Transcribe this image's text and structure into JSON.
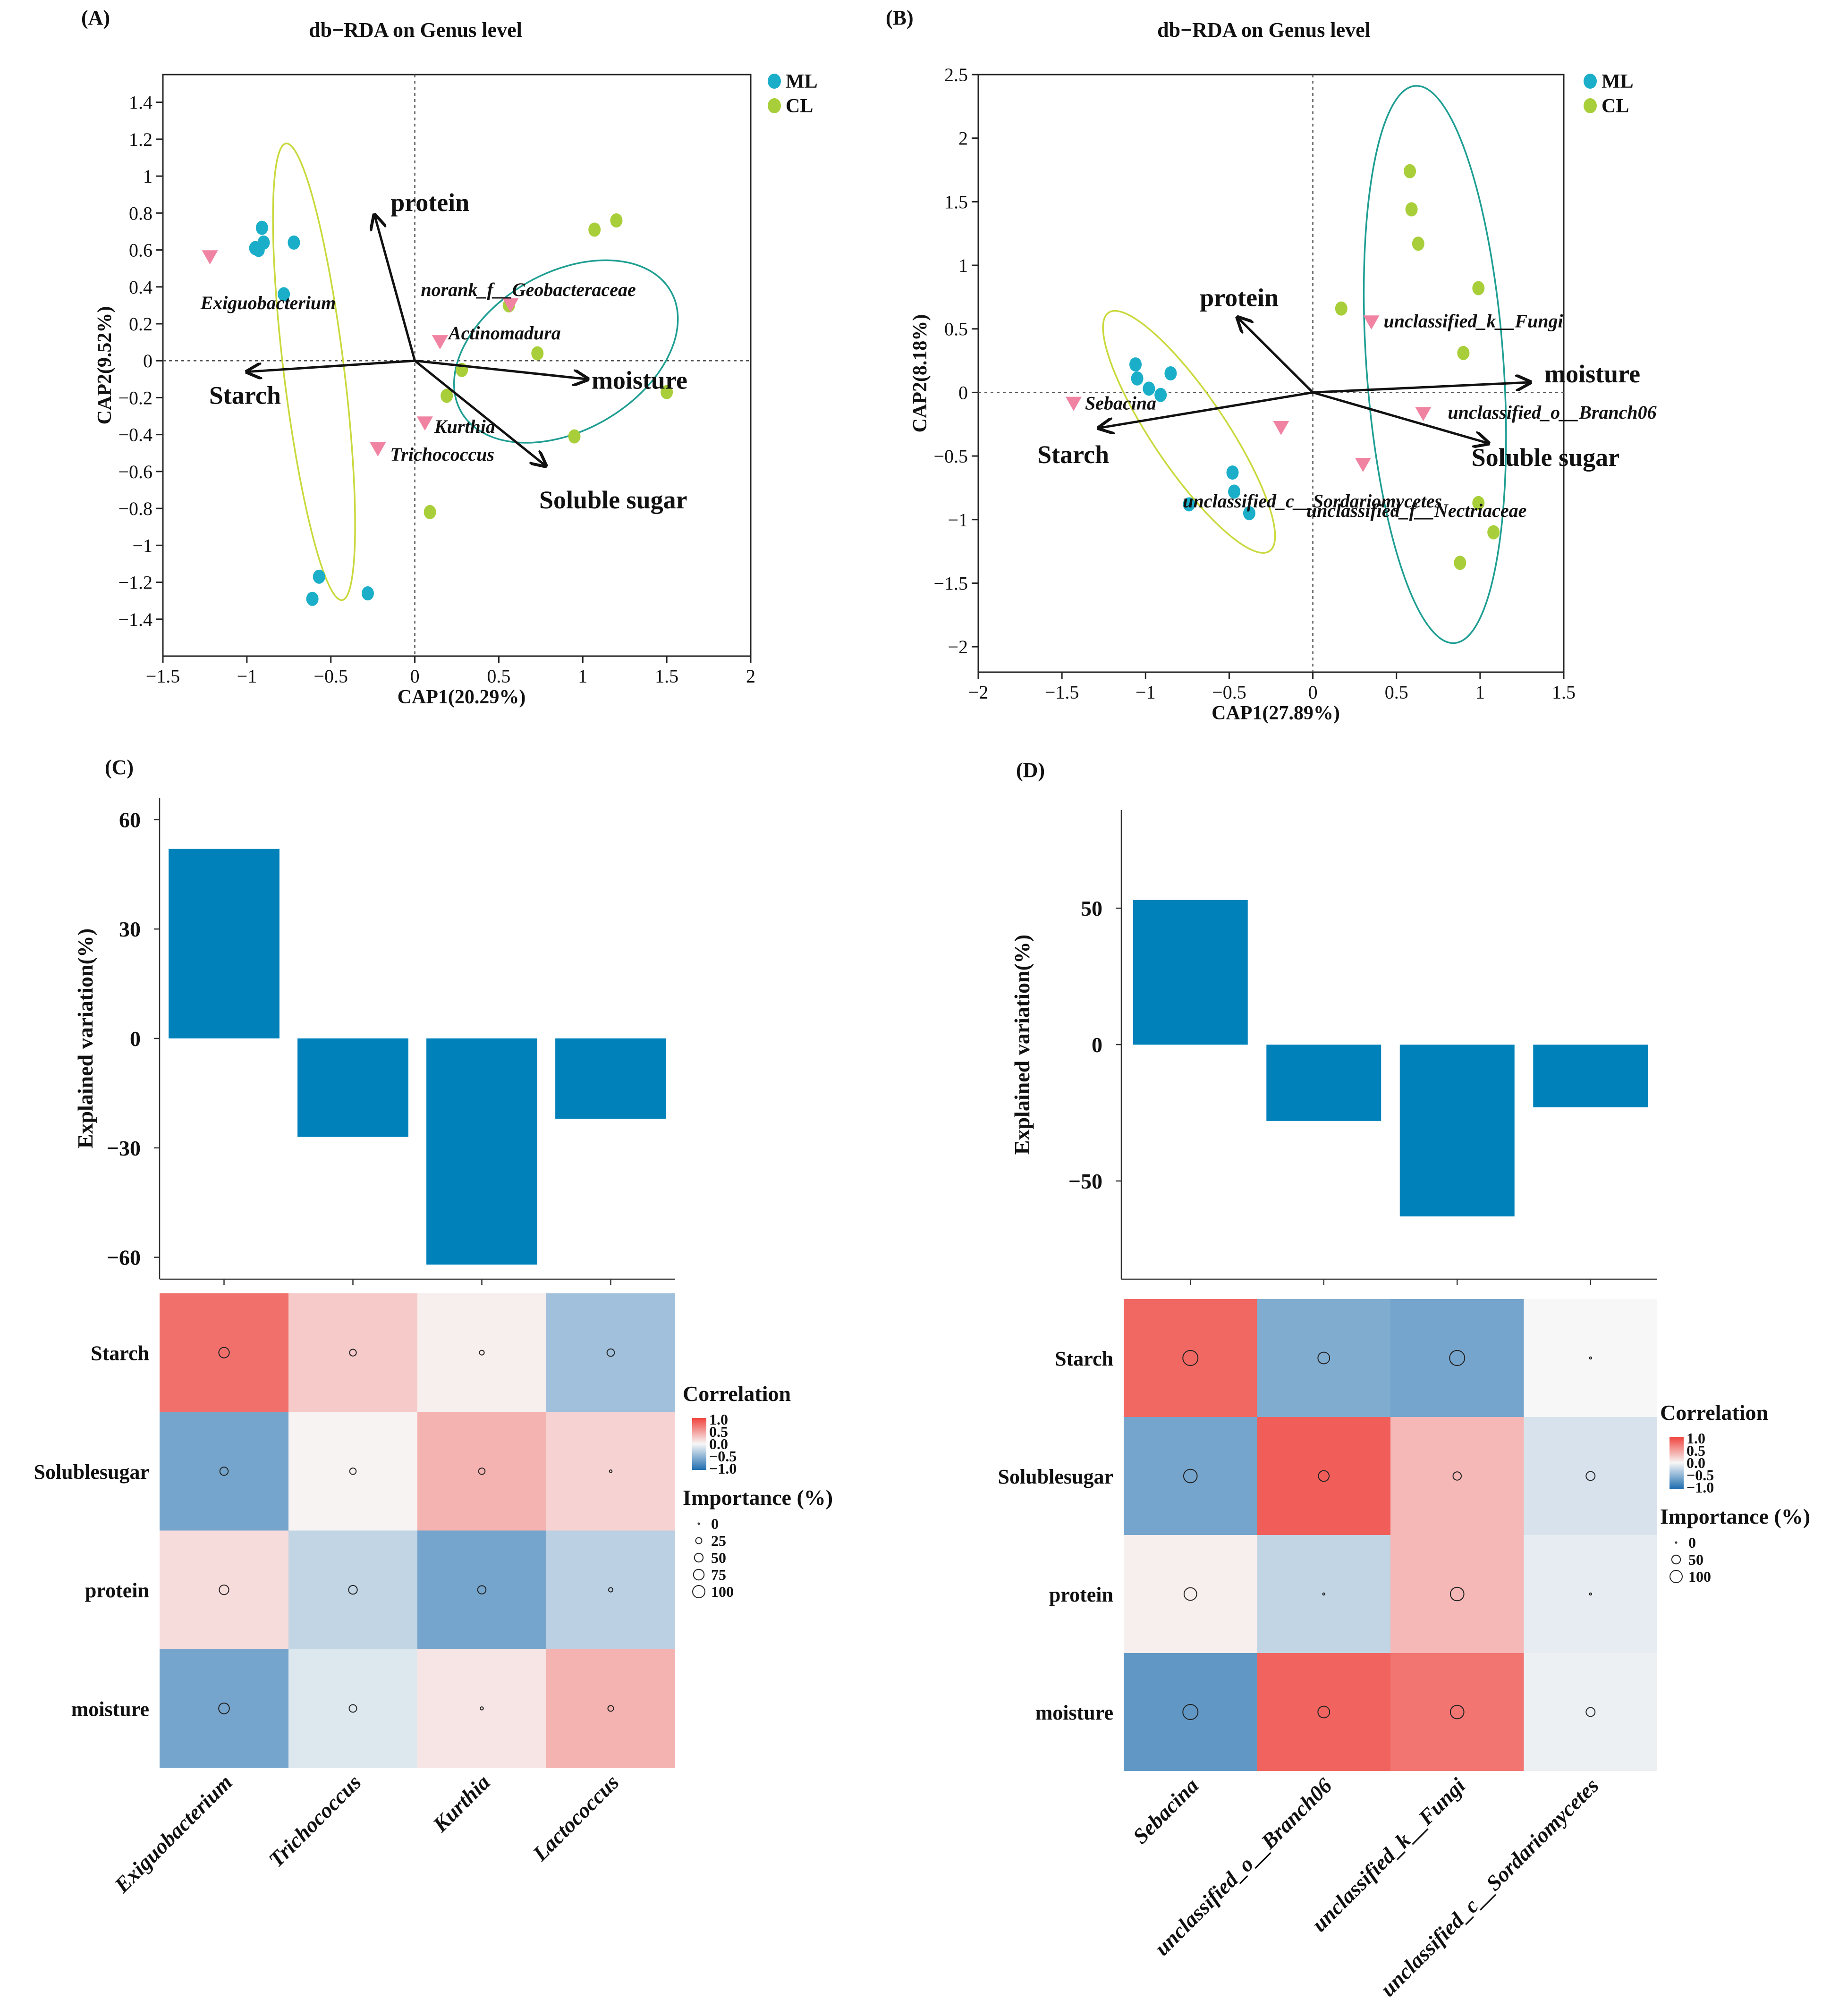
{
  "chart_data": [
    {
      "panel": "(A)",
      "type": "scatter",
      "title": "db−RDA on Genus level",
      "xlabel": "CAP1(20.29%)",
      "ylabel": "CAP2(9.52%)",
      "xlim": [
        -1.5,
        2
      ],
      "ylim": [
        -1.6,
        1.55
      ],
      "xticks": [
        -1.5,
        -1,
        -0.5,
        0,
        0.5,
        1,
        1.5,
        2
      ],
      "yticks": [
        -1.4,
        -1.2,
        -1,
        -0.8,
        -0.6,
        -0.4,
        -0.2,
        0,
        0.2,
        0.4,
        0.6,
        0.8,
        1,
        1.2,
        1.4
      ],
      "legend": [
        {
          "name": "ML",
          "color": "#1AAEC9"
        },
        {
          "name": "CL",
          "color": "#A8CE3A"
        }
      ],
      "series": [
        {
          "name": "ML",
          "points": [
            [
              -0.91,
              0.72
            ],
            [
              -0.9,
              0.64
            ],
            [
              -0.93,
              0.6
            ],
            [
              -0.95,
              0.61
            ],
            [
              -0.72,
              0.64
            ],
            [
              -0.78,
              0.36
            ],
            [
              -0.57,
              -1.17
            ],
            [
              -0.61,
              -1.29
            ],
            [
              -0.28,
              -1.26
            ]
          ]
        },
        {
          "name": "CL",
          "points": [
            [
              1.2,
              0.76
            ],
            [
              1.07,
              0.71
            ],
            [
              0.56,
              0.3
            ],
            [
              0.73,
              0.04
            ],
            [
              0.28,
              -0.05
            ],
            [
              0.19,
              -0.19
            ],
            [
              1.5,
              -0.17
            ],
            [
              0.95,
              -0.41
            ],
            [
              0.09,
              -0.82
            ]
          ]
        }
      ],
      "ellipses": [
        {
          "group": "ML",
          "color": "#C9D93D",
          "cx": -0.6,
          "cy": -0.06,
          "rx": 1.37,
          "ry": 0.18,
          "angle_deg": -83
        },
        {
          "group": "CL",
          "color": "#1F9E93",
          "cx": 0.9,
          "cy": 0.05,
          "rx": 0.72,
          "ry": 0.47,
          "angle_deg": 30
        }
      ],
      "species": [
        {
          "name": "Exiguobacterium",
          "x": -1.22,
          "y": 0.56
        },
        {
          "name": "norank_f__Geobacteraceae",
          "x": 0.57,
          "y": 0.3
        },
        {
          "name": "Actinomadura",
          "x": 0.15,
          "y": 0.1
        },
        {
          "name": "Kurthia",
          "x": 0.06,
          "y": -0.34
        },
        {
          "name": "Trichococcus",
          "x": -0.22,
          "y": -0.48
        }
      ],
      "species_color": "#F083A2",
      "arrows": [
        {
          "name": "protein",
          "x": -0.24,
          "y": 0.79
        },
        {
          "name": "Starch",
          "x": -1.0,
          "y": -0.06
        },
        {
          "name": "moisture",
          "x": 1.03,
          "y": -0.1
        },
        {
          "name": "Soluble sugar",
          "x": 0.78,
          "y": -0.57
        }
      ]
    },
    {
      "panel": "(B)",
      "type": "scatter",
      "title": "db−RDA on Genus level",
      "xlabel": "CAP1(27.89%)",
      "ylabel": "CAP2(8.18%)",
      "xlim": [
        -2,
        1.5
      ],
      "ylim": [
        -2.2,
        2.5
      ],
      "xticks": [
        -2,
        -1.5,
        -1,
        -0.5,
        0,
        0.5,
        1,
        1.5
      ],
      "yticks": [
        -2,
        -1.5,
        -1,
        -0.5,
        0,
        0.5,
        1,
        1.5,
        2,
        2.5
      ],
      "legend": [
        {
          "name": "ML",
          "color": "#1AAEC9"
        },
        {
          "name": "CL",
          "color": "#A8CE3A"
        }
      ],
      "series": [
        {
          "name": "ML",
          "points": [
            [
              -1.06,
              0.22
            ],
            [
              -1.05,
              0.11
            ],
            [
              -0.98,
              0.03
            ],
            [
              -0.91,
              -0.02
            ],
            [
              -0.85,
              0.15
            ],
            [
              -0.74,
              -0.88
            ],
            [
              -0.48,
              -0.63
            ],
            [
              -0.47,
              -0.78
            ],
            [
              -0.38,
              -0.95
            ]
          ]
        },
        {
          "name": "CL",
          "points": [
            [
              0.58,
              1.74
            ],
            [
              0.59,
              1.44
            ],
            [
              0.63,
              1.17
            ],
            [
              0.17,
              0.66
            ],
            [
              0.99,
              0.82
            ],
            [
              0.9,
              0.31
            ],
            [
              0.99,
              -0.87
            ],
            [
              1.08,
              -1.1
            ],
            [
              0.88,
              -1.34
            ]
          ]
        }
      ],
      "ellipses": [
        {
          "group": "ML",
          "color": "#C9D93D",
          "cx": -0.74,
          "cy": -0.31,
          "rx": 0.86,
          "ry": 0.22,
          "angle_deg": -56
        },
        {
          "group": "CL",
          "color": "#1F9E93",
          "cx": 0.73,
          "cy": 0.22,
          "rx": 1.67,
          "ry": 0.41,
          "angle_deg": -86
        }
      ],
      "species": [
        {
          "name": "Sebacina",
          "x": -1.43,
          "y": -0.09
        },
        {
          "name": "unclassified_k__Fungi",
          "x": 0.35,
          "y": 0.55
        },
        {
          "name": "unclassified_o__Branch06",
          "x": 0.66,
          "y": -0.17
        },
        {
          "name": "unclassified_c__Sordariomycetes",
          "x": -0.19,
          "y": -0.28
        },
        {
          "name": "unclassified_f__Nectriaceae",
          "x": 0.3,
          "y": -0.57
        }
      ],
      "species_color": "#F083A2",
      "arrows": [
        {
          "name": "protein",
          "x": -0.45,
          "y": 0.59
        },
        {
          "name": "Starch",
          "x": -1.28,
          "y": -0.28
        },
        {
          "name": "moisture",
          "x": 1.3,
          "y": 0.08
        },
        {
          "name": "Soluble sugar",
          "x": 1.05,
          "y": -0.4
        }
      ]
    },
    {
      "panel": "(C)",
      "type": "bar",
      "ylabel": "Explained variation(%)",
      "ylim": [
        -66,
        66
      ],
      "yticks": [
        -60,
        -30,
        0,
        30,
        60
      ],
      "categories": [
        "Exiguobacterium",
        "Trichococcus",
        "Kurthia",
        "Lactococcus"
      ],
      "values": [
        52,
        -27,
        -62,
        -22
      ],
      "bar_color": "#0081BA"
    },
    {
      "panel": "(C)",
      "type": "heatmap",
      "rows": [
        "Starch",
        "Solublesugar",
        "protein",
        "moisture"
      ],
      "columns": [
        "Exiguobacterium",
        "Trichococcus",
        "Kurthia",
        "Lactococcus"
      ],
      "correlation": [
        [
          0.75,
          0.25,
          0.05,
          -0.4
        ],
        [
          -0.6,
          0.02,
          0.38,
          0.2
        ],
        [
          0.15,
          -0.25,
          -0.6,
          -0.28
        ],
        [
          -0.6,
          -0.12,
          0.1,
          0.38
        ]
      ],
      "importance": [
        [
          48,
          20,
          10,
          24
        ],
        [
          30,
          18,
          18,
          3
        ],
        [
          40,
          33,
          30,
          8
        ],
        [
          50,
          25,
          4,
          14
        ]
      ],
      "legend_title_color": "Correlation",
      "color_ticks": [
        "1.0",
        "0.5",
        "0.0",
        "−0.5",
        "−1.0"
      ],
      "legend_title_size": "Importance (%)",
      "size_ticks": [
        "0",
        "25",
        "50",
        "75",
        "100"
      ]
    },
    {
      "panel": "(D)",
      "type": "bar",
      "ylabel": "Explained variation(%)",
      "ylim": [
        -86,
        86
      ],
      "yticks": [
        -50,
        0,
        50
      ],
      "categories": [
        "Sebacina",
        "unclassified_o__Branch06",
        "unclassified_k__Fungi",
        "unclassified_c__Sordariomycetes"
      ],
      "values": [
        53,
        -28,
        -63,
        -23
      ],
      "bar_color": "#0081BA"
    },
    {
      "panel": "(D)",
      "type": "heatmap",
      "rows": [
        "Starch",
        "Solublesugar",
        "protein",
        "moisture"
      ],
      "columns": [
        "Sebacina",
        "unclassified_o__Branch06",
        "unclassified_k__Fungi",
        "unclassified_c__Sordariomycetes"
      ],
      "correlation": [
        [
          0.8,
          -0.55,
          -0.6,
          0.0
        ],
        [
          -0.6,
          0.85,
          0.35,
          -0.15
        ],
        [
          0.05,
          -0.25,
          0.35,
          -0.08
        ],
        [
          -0.7,
          0.82,
          0.72,
          -0.05
        ]
      ],
      "importance": [
        [
          100,
          60,
          100,
          2
        ],
        [
          80,
          50,
          30,
          35
        ],
        [
          70,
          2,
          80,
          2
        ],
        [
          100,
          60,
          80,
          35
        ]
      ],
      "legend_title_color": "Correlation",
      "color_ticks": [
        "1.0",
        "0.5",
        "0.0",
        "−0.5",
        "−1.0"
      ],
      "legend_title_size": "Importance (%)",
      "size_ticks": [
        "0",
        "50",
        "100"
      ]
    }
  ]
}
